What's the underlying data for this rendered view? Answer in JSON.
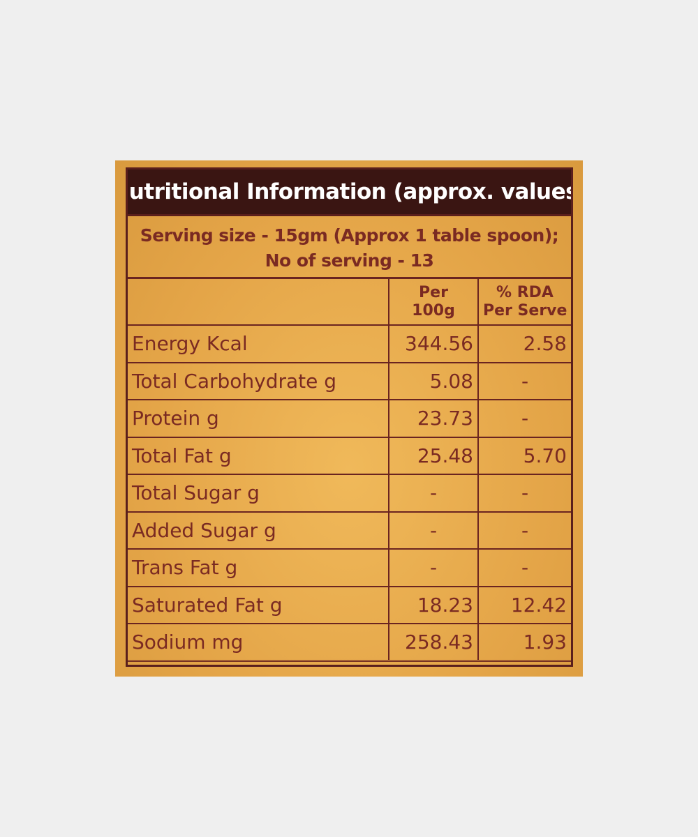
{
  "label": {
    "title": "Nutritional Information (approx. values)",
    "serving_line1": "Serving size - 15gm (Approx 1 table spoon);",
    "serving_line2": "No of serving  - 13",
    "header": {
      "col1": "",
      "col2_line1": "Per",
      "col2_line2": "100g",
      "col3_line1": "% RDA",
      "col3_line2": "Per Serve"
    },
    "rows": [
      {
        "nutrient": "Energy  Kcal",
        "per100g": "344.56",
        "rda": "2.58"
      },
      {
        "nutrient": "Total Carbohydrate g",
        "per100g": "5.08",
        "rda": "-"
      },
      {
        "nutrient": "Protein g",
        "per100g": "23.73",
        "rda": "-"
      },
      {
        "nutrient": "Total Fat g",
        "per100g": "25.48",
        "rda": "5.70"
      },
      {
        "nutrient": "Total Sugar g",
        "per100g": "-",
        "rda": "-"
      },
      {
        "nutrient": "Added Sugar g",
        "per100g": "-",
        "rda": "-"
      },
      {
        "nutrient": "Trans Fat  g",
        "per100g": "-",
        "rda": "-"
      },
      {
        "nutrient": "Saturated Fat  g",
        "per100g": "18.23",
        "rda": "12.42"
      },
      {
        "nutrient": "Sodium  mg",
        "per100g": "258.43",
        "rda": "1.93"
      }
    ]
  },
  "colors": {
    "background": "#efefef",
    "label_orange": "#e5a84c",
    "title_bar": "#3a1512",
    "text_maroon": "#7a2a22"
  }
}
